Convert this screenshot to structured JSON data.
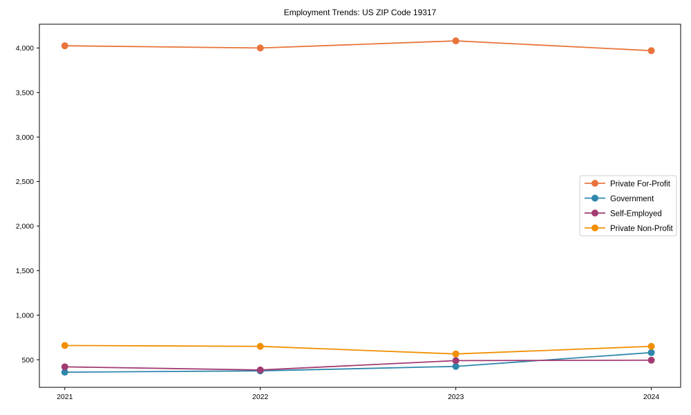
{
  "page": {
    "background": "#ffffff"
  },
  "chart_data": {
    "type": "line",
    "title": "Employment Trends: US ZIP Code 19317",
    "xlabel": "",
    "ylabel": "",
    "x": [
      2021,
      2022,
      2023,
      2024
    ],
    "x_tick_labels": [
      "2021",
      "2022",
      "2023",
      "2024"
    ],
    "y_ticks": [
      500,
      1000,
      1500,
      2000,
      2500,
      3000,
      3500,
      4000
    ],
    "y_tick_labels": [
      "500",
      "1,000",
      "1,500",
      "2,000",
      "2,500",
      "3,000",
      "3,500",
      "4,000"
    ],
    "xlim": [
      2020.87,
      2024.15
    ],
    "ylim": [
      190,
      4267
    ],
    "grid": false,
    "axis_color": "#000000",
    "marker": "circle",
    "marker_radius": 5,
    "line_width": 1.8,
    "legend": {
      "position": "center-right",
      "background": "#ffffff",
      "border_color": "#cccccc"
    },
    "series": [
      {
        "name": "Private For-Profit",
        "color": "#e8743b",
        "values": [
          4025,
          4000,
          4080,
          3970
        ]
      },
      {
        "name": "Government",
        "color": "#2e86ab",
        "values": [
          360,
          375,
          425,
          580
        ]
      },
      {
        "name": "Self-Employed",
        "color": "#a23b72",
        "values": [
          420,
          385,
          490,
          495
        ]
      },
      {
        "name": "Private Non-Profit",
        "color": "#f18f01",
        "values": [
          660,
          650,
          565,
          650
        ]
      }
    ]
  }
}
